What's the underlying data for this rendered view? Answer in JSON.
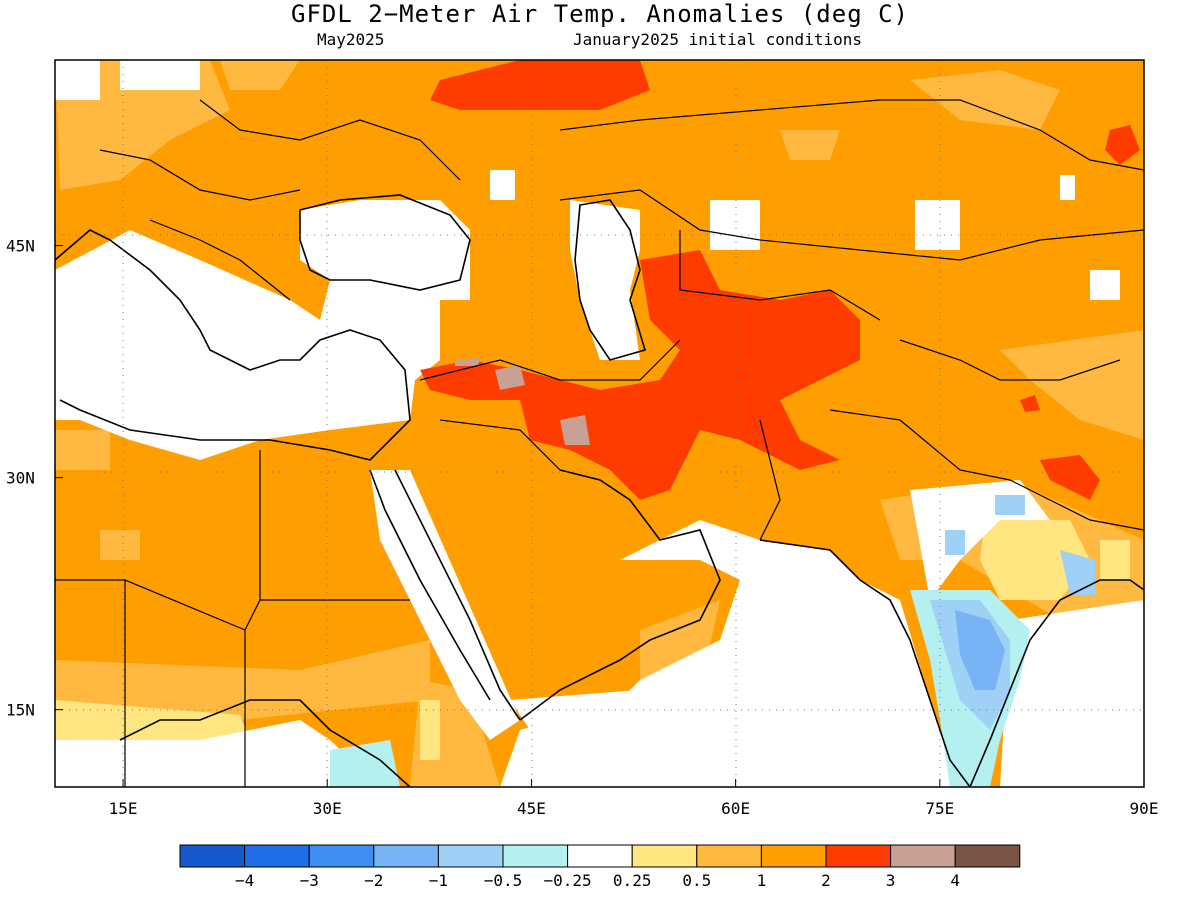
{
  "title": "GFDL 2−Meter Air Temp. Anomalies (deg C)",
  "subtitle_left": "May2025",
  "subtitle_right": "January2025 initial conditions",
  "map": {
    "lon_range": [
      10,
      90
    ],
    "lat_range": [
      10,
      57
    ],
    "x_ticks": [
      {
        "value": 15,
        "label": "15E"
      },
      {
        "value": 30,
        "label": "30E"
      },
      {
        "value": 45,
        "label": "45E"
      },
      {
        "value": 60,
        "label": "60E"
      },
      {
        "value": 75,
        "label": "75E"
      },
      {
        "value": 90,
        "label": "90E"
      }
    ],
    "y_ticks": [
      {
        "value": 45,
        "label": "45N"
      },
      {
        "value": 30,
        "label": "30N"
      },
      {
        "value": 15,
        "label": "15N"
      }
    ]
  },
  "colors": {
    "lt_m4": "#1559cc",
    "m4_m3": "#1f6ee8",
    "m3_m2": "#3d8ef0",
    "m2_m1": "#78b4f5",
    "m1_m05": "#9fd0f5",
    "m05_m025": "#b4f0f0",
    "neutral": "#ffffff",
    "p025_p05": "#ffe680",
    "p05_p1": "#ffb840",
    "p1_p2": "#ff9e00",
    "p2_p3": "#ff3c00",
    "p3_p4": "#c9a094",
    "gt_p4": "#7a5545"
  },
  "legend": {
    "colors": [
      "#1559cc",
      "#1f6ee8",
      "#3d8ef0",
      "#78b4f5",
      "#9fd0f5",
      "#b4f0f0",
      "#ffffff",
      "#ffe680",
      "#ffb840",
      "#ff9e00",
      "#ff3c00",
      "#c9a094",
      "#7a5545"
    ],
    "labels": [
      "−4",
      "−3",
      "−2",
      "−1",
      "−0.5",
      "−0.25",
      "0.25",
      "0.5",
      "1",
      "2",
      "3",
      "4"
    ]
  }
}
